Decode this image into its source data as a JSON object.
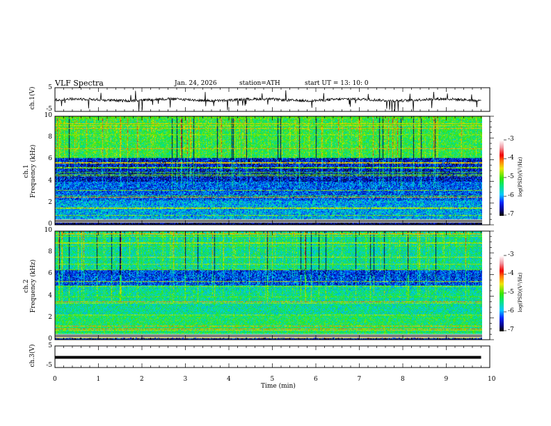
{
  "header": {
    "title": "VLF  Spectra",
    "date": "Jan. 24, 2026",
    "station": "station=ATH",
    "start": "start  UT  =   13: 10: 0"
  },
  "chart_data": [
    {
      "type": "line",
      "name": "ch1",
      "ylabel": "ch.1(V)",
      "ylim": [
        -5,
        5
      ],
      "yticks": [
        "5",
        "-5"
      ],
      "xlim": [
        0,
        10
      ],
      "mean": -0.3,
      "data_end_min": 9.8
    },
    {
      "type": "heatmap",
      "name": "ch1-spectrogram",
      "ylabel": "ch.1\nFrequency (kHz)",
      "ylabel_lines": [
        "ch.1",
        "Frequency  (kHz)"
      ],
      "ylim": [
        0,
        10
      ],
      "yticks": [
        "0",
        "2",
        "4",
        "6",
        "8",
        "10"
      ],
      "xlim": [
        0,
        10
      ],
      "colorbar": {
        "label": "log(PSD)(V²/Hz)",
        "range": [
          -7,
          -3
        ],
        "ticks": [
          "-3",
          "-4",
          "-5",
          "-6",
          "-7"
        ]
      }
    },
    {
      "type": "heatmap",
      "name": "ch2-spectrogram",
      "ylabel_lines": [
        "ch.2",
        "Frequency  (kHz)"
      ],
      "ylim": [
        0,
        10
      ],
      "yticks": [
        "0",
        "2",
        "4",
        "6",
        "8",
        "10"
      ],
      "xlim": [
        0,
        10
      ],
      "colorbar": {
        "label": "log(PSD)(V²/Hz)",
        "range": [
          -7,
          -3
        ],
        "ticks": [
          "-3",
          "-4",
          "-5",
          "-6",
          "-7"
        ]
      }
    },
    {
      "type": "line",
      "name": "ch3",
      "ylabel": "ch.3(V)",
      "ylim": [
        -5,
        5
      ],
      "yticks": [
        "5",
        "-5"
      ],
      "xlim": [
        0,
        10
      ],
      "mean": -0.5,
      "data_end_min": 9.8
    }
  ],
  "xaxis": {
    "label": "Time  (min)",
    "ticks": [
      "0",
      "1",
      "2",
      "3",
      "4",
      "5",
      "6",
      "7",
      "8",
      "9",
      "10"
    ]
  },
  "colors": {
    "line": "#000000"
  }
}
